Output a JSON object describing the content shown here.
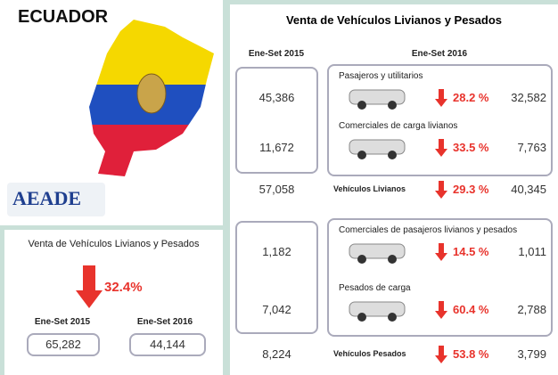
{
  "map": {
    "title": "ECUADOR",
    "logo": "AEADE"
  },
  "summary": {
    "title": "Venta de Vehículos Livianos y Pesados",
    "change": "32.4%",
    "columns": [
      {
        "label": "Ene-Set 2015",
        "value": "65,282"
      },
      {
        "label": "Ene-Set 2016",
        "value": "44,144"
      }
    ]
  },
  "detail": {
    "title": "Venta de Vehículos Livianos y Pesados",
    "col_2015": "Ene-Set 2015",
    "col_2016": "Ene-Set 2016",
    "groups": [
      {
        "rows": [
          {
            "label": "Pasajeros y utilitarios",
            "v2015": "45,386",
            "change": "28.2 %",
            "v2016": "32,582"
          },
          {
            "label": "Comerciales de carga livianos",
            "v2015": "11,672",
            "change": "33.5 %",
            "v2016": "7,763"
          }
        ],
        "total": {
          "label": "Vehículos Livianos",
          "v2015": "57,058",
          "change": "29.3 %",
          "v2016": "40,345"
        }
      },
      {
        "rows": [
          {
            "label": "Comerciales de pasajeros livianos y pesados",
            "v2015": "1,182",
            "change": "14.5 %",
            "v2016": "1,011"
          },
          {
            "label": "Pesados de carga",
            "v2015": "7,042",
            "change": "60.4 %",
            "v2016": "2,788"
          }
        ],
        "total": {
          "label": "Vehículos Pesados",
          "v2015": "8,224",
          "change": "53.8 %",
          "v2016": "3,799"
        }
      }
    ]
  }
}
